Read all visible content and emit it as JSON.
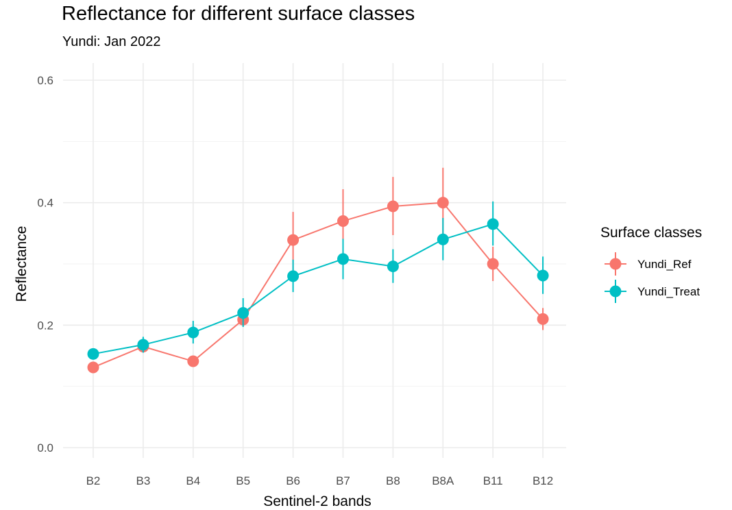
{
  "chart_data": {
    "type": "line",
    "title": "Reflectance for different surface classes",
    "subtitle": "Yundi: Jan 2022",
    "xlabel": "Sentinel-2 bands",
    "ylabel": "Reflectance",
    "categories": [
      "B2",
      "B3",
      "B4",
      "B5",
      "B6",
      "B7",
      "B8",
      "B8A",
      "B11",
      "B12"
    ],
    "ylim": [
      0,
      0.6
    ],
    "yticks": [
      0.0,
      0.2,
      0.4,
      0.6
    ],
    "ytick_labels": [
      "0.0",
      "0.2",
      "0.4",
      "0.6"
    ],
    "grid": true,
    "legend": {
      "title": "Surface classes",
      "position": "right"
    },
    "series": [
      {
        "name": "Yundi_Ref",
        "color": "#F8766D",
        "values": [
          0.131,
          0.165,
          0.141,
          0.209,
          0.339,
          0.37,
          0.394,
          0.4,
          0.3,
          0.21
        ],
        "error_low": [
          0.131,
          0.16,
          0.141,
          0.198,
          0.29,
          0.318,
          0.347,
          0.345,
          0.272,
          0.192
        ],
        "error_high": [
          0.131,
          0.17,
          0.141,
          0.22,
          0.385,
          0.422,
          0.442,
          0.457,
          0.328,
          0.228
        ]
      },
      {
        "name": "Yundi_Treat",
        "color": "#00BFC4",
        "values": [
          0.153,
          0.168,
          0.188,
          0.22,
          0.28,
          0.308,
          0.296,
          0.34,
          0.365,
          0.281
        ],
        "error_low": [
          0.153,
          0.155,
          0.17,
          0.197,
          0.254,
          0.275,
          0.269,
          0.306,
          0.33,
          0.251
        ],
        "error_high": [
          0.153,
          0.181,
          0.207,
          0.244,
          0.307,
          0.341,
          0.324,
          0.375,
          0.402,
          0.312
        ]
      }
    ]
  }
}
